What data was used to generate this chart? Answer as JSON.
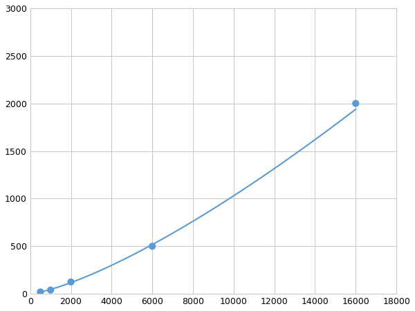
{
  "x": [
    500,
    1000,
    2000,
    6000,
    16000
  ],
  "y": [
    20,
    40,
    125,
    500,
    2000
  ],
  "line_color": "#5b9bd5",
  "marker_color": "#5b9bd5",
  "marker_size": 6,
  "line_width": 1.5,
  "xlim": [
    0,
    18000
  ],
  "ylim": [
    0,
    3000
  ],
  "xticks": [
    0,
    2000,
    4000,
    6000,
    8000,
    10000,
    12000,
    14000,
    16000,
    18000
  ],
  "yticks": [
    0,
    500,
    1000,
    1500,
    2000,
    2500,
    3000
  ],
  "grid_color": "#c8c8c8",
  "background_color": "#ffffff",
  "figsize": [
    6.0,
    4.5
  ],
  "dpi": 100
}
